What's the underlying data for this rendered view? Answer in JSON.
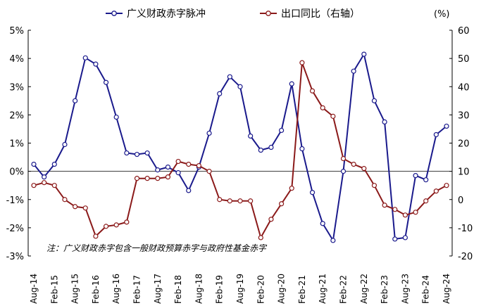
{
  "chart_data": {
    "type": "line",
    "unit_right": "(%)",
    "note": "注：广义财政赤字包含一般财政预算赤字与政府性基金赤字",
    "x": [
      "Aug-14",
      "Nov-14",
      "Feb-15",
      "May-15",
      "Aug-15",
      "Nov-15",
      "Feb-16",
      "May-16",
      "Aug-16",
      "Nov-16",
      "Feb-17",
      "May-17",
      "Aug-17",
      "Nov-17",
      "Feb-18",
      "May-18",
      "Aug-18",
      "Nov-18",
      "Feb-19",
      "May-19",
      "Aug-19",
      "Nov-19",
      "Feb-20",
      "May-20",
      "Aug-20",
      "Nov-20",
      "Feb-21",
      "May-21",
      "Aug-21",
      "Nov-21",
      "Feb-22",
      "May-22",
      "Aug-22",
      "Nov-22",
      "Feb-23",
      "May-23",
      "Aug-23",
      "Nov-23",
      "Feb-24",
      "May-24",
      "Aug-24"
    ],
    "x_tick_labels": [
      "Aug-14",
      "Feb-15",
      "Aug-15",
      "Feb-16",
      "Aug-16",
      "Feb-17",
      "Aug-17",
      "Feb-18",
      "Aug-18",
      "Feb-19",
      "Aug-19",
      "Feb-20",
      "Aug-20",
      "Feb-21",
      "Aug-21",
      "Feb-22",
      "Aug-22",
      "Feb-23",
      "Aug-23",
      "Feb-24",
      "Aug-24"
    ],
    "y_left": {
      "ylim": [
        -3,
        5
      ],
      "ticks": [
        "-3%",
        "-2%",
        "-1%",
        "0%",
        "1%",
        "2%",
        "3%",
        "4%",
        "5%"
      ]
    },
    "y_right": {
      "ylim": [
        -20,
        60
      ],
      "ticks": [
        "-20",
        "-10",
        "0",
        "10",
        "20",
        "30",
        "40",
        "50",
        "60"
      ]
    },
    "series": [
      {
        "name": "广义财政赤字脉冲",
        "axis": "left",
        "color": "#1a1a8c",
        "values": [
          0.25,
          -0.2,
          0.25,
          0.95,
          2.5,
          4.02,
          3.8,
          3.15,
          1.92,
          0.65,
          0.6,
          0.65,
          0.05,
          0.15,
          -0.05,
          -0.68,
          0.15,
          1.35,
          2.75,
          3.35,
          3.0,
          1.25,
          0.75,
          0.85,
          1.45,
          3.1,
          0.8,
          -0.75,
          -1.85,
          -2.45,
          0.0,
          3.55,
          4.15,
          2.5,
          1.75,
          -2.4,
          -2.35,
          -0.15,
          -0.3,
          1.3,
          1.6
        ]
      },
      {
        "name": "出口同比（右轴）",
        "axis": "right",
        "color": "#8b1a1a",
        "values": [
          5.0,
          6.0,
          5.0,
          0.0,
          -2.5,
          -3.0,
          -13.0,
          -9.5,
          -9.0,
          -8.0,
          7.5,
          7.5,
          7.5,
          8.0,
          13.5,
          12.5,
          12.0,
          10.0,
          0.0,
          -0.5,
          -0.5,
          -0.5,
          -13.5,
          -7.0,
          -1.5,
          4.0,
          48.5,
          38.5,
          32.5,
          29.5,
          14.5,
          12.5,
          11.0,
          5.0,
          -2.0,
          -3.5,
          -5.5,
          -4.5,
          -0.5,
          3.0,
          5.0
        ]
      }
    ]
  }
}
